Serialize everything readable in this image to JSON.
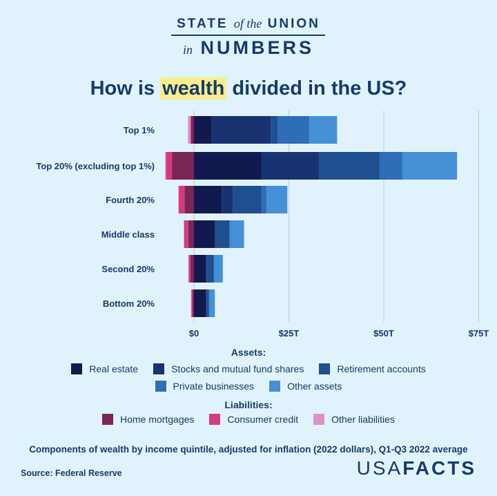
{
  "header": {
    "line1_a": "STATE",
    "line1_b": "of the",
    "line1_c": "UNION",
    "line2_a": "in",
    "line2_b": "NUMBERS"
  },
  "title": {
    "pre": "How is ",
    "highlight": "wealth",
    "post": " divided in the US?"
  },
  "colors": {
    "background": "#e0f3fc",
    "highlight": "#fbec8c",
    "text": "#163a6b"
  },
  "chart_data": {
    "type": "bar",
    "orientation": "horizontal-stacked-diverging",
    "categories": [
      "Top 1%",
      "Top 20% (excluding top 1%)",
      "Fourth 20%",
      "Middle class",
      "Second 20%",
      "Bottom 20%"
    ],
    "xlim": [
      -8,
      75
    ],
    "xticks": [
      0,
      25,
      50,
      75
    ],
    "xtick_labels": [
      "$0",
      "$25T",
      "$50T",
      "$75T"
    ],
    "grid": true,
    "unit": "trillion USD",
    "series": [
      {
        "name": "Real estate",
        "group": "Assets",
        "color": "#101a4f",
        "values": [
          4.7,
          17.8,
          7.3,
          5.5,
          3.1,
          3.1
        ]
      },
      {
        "name": "Stocks and mutual fund shares",
        "group": "Assets",
        "color": "#183370",
        "values": [
          15.5,
          15.1,
          2.9,
          0.3,
          0.3,
          0.2
        ]
      },
      {
        "name": "Retirement accounts",
        "group": "Assets",
        "color": "#1f4f8f",
        "values": [
          1.8,
          16.0,
          7.6,
          3.5,
          1.8,
          0.6
        ]
      },
      {
        "name": "Private businesses",
        "group": "Assets",
        "color": "#2e6db8",
        "values": [
          8.4,
          6.0,
          1.3,
          0.3,
          0.2,
          0.1
        ]
      },
      {
        "name": "Other assets",
        "group": "Assets",
        "color": "#4590d6",
        "values": [
          7.3,
          14.4,
          5.5,
          3.6,
          2.2,
          1.5
        ]
      },
      {
        "name": "Home mortgages",
        "group": "Liabilities",
        "color": "#7b2456",
        "values": [
          -0.8,
          -5.8,
          -2.5,
          -1.5,
          -0.9,
          -0.4
        ]
      },
      {
        "name": "Consumer credit",
        "group": "Liabilities",
        "color": "#d63a7e",
        "values": [
          -0.1,
          -1.6,
          -1.5,
          -1.1,
          -0.5,
          -0.3
        ]
      },
      {
        "name": "Other liabilities",
        "group": "Liabilities",
        "color": "#e090c8",
        "values": [
          -0.7,
          -0.2,
          -0.1,
          -0.1,
          -0.1,
          -0.1
        ]
      }
    ]
  },
  "legend": {
    "assets_title": "Assets:",
    "liabilities_title": "Liabilities:"
  },
  "footer": {
    "caption": "Components of wealth by income quintile, adjusted for inflation (2022 dollars), Q1-Q3 2022 average",
    "source": "Source: Federal Reserve",
    "logo_a": "USA",
    "logo_b": "FACTS"
  }
}
